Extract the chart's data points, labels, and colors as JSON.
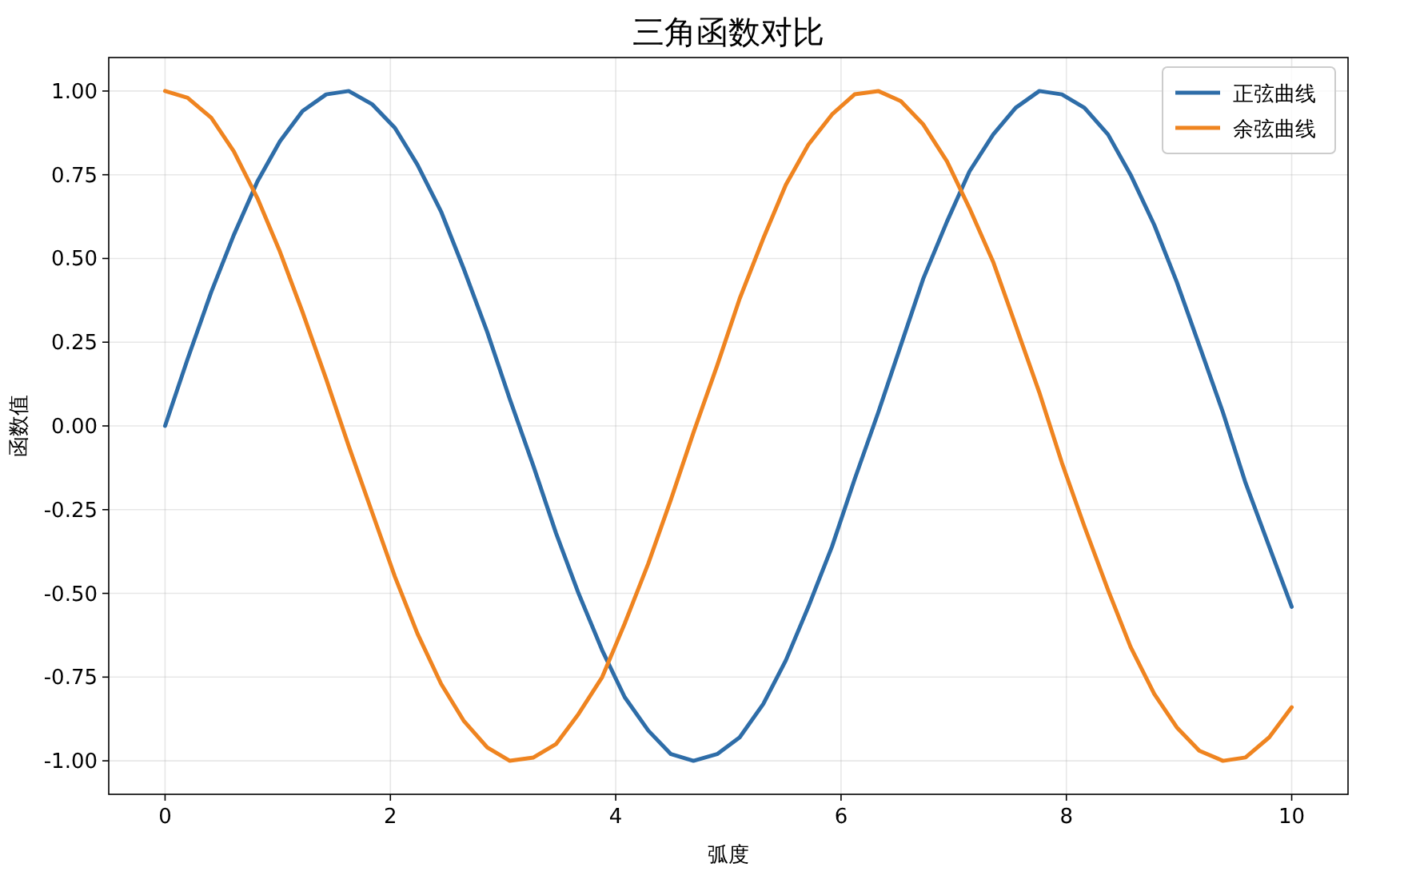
{
  "chart_data": {
    "type": "line",
    "title": "三角函数对比",
    "xlabel": "弧度",
    "ylabel": "函数值",
    "x": [
      0,
      0.2,
      0.41,
      0.61,
      0.82,
      1.02,
      1.22,
      1.43,
      1.63,
      1.84,
      2.04,
      2.24,
      2.45,
      2.65,
      2.86,
      3.06,
      3.27,
      3.47,
      3.67,
      3.88,
      4.08,
      4.29,
      4.49,
      4.69,
      4.9,
      5.1,
      5.31,
      5.51,
      5.71,
      5.92,
      6.12,
      6.33,
      6.53,
      6.73,
      6.94,
      7.14,
      7.35,
      7.55,
      7.76,
      7.96,
      8.16,
      8.37,
      8.57,
      8.78,
      8.98,
      9.18,
      9.39,
      9.59,
      9.8,
      10
    ],
    "series": [
      {
        "name": "正弦曲线",
        "color": "#2e6da8",
        "values": [
          0,
          0.2,
          0.4,
          0.57,
          0.73,
          0.85,
          0.94,
          0.99,
          1.0,
          0.96,
          0.89,
          0.78,
          0.64,
          0.47,
          0.28,
          0.08,
          -0.12,
          -0.32,
          -0.5,
          -0.67,
          -0.81,
          -0.91,
          -0.98,
          -1.0,
          -0.98,
          -0.93,
          -0.83,
          -0.7,
          -0.54,
          -0.36,
          -0.16,
          0.04,
          0.24,
          0.44,
          0.61,
          0.76,
          0.87,
          0.95,
          1.0,
          0.99,
          0.95,
          0.87,
          0.75,
          0.6,
          0.43,
          0.24,
          0.04,
          -0.17,
          -0.36,
          -0.54
        ]
      },
      {
        "name": "余弦曲线",
        "color": "#ef8420",
        "values": [
          1.0,
          0.98,
          0.92,
          0.82,
          0.68,
          0.52,
          0.34,
          0.14,
          -0.06,
          -0.26,
          -0.45,
          -0.62,
          -0.77,
          -0.88,
          -0.96,
          -1.0,
          -0.99,
          -0.95,
          -0.86,
          -0.75,
          -0.59,
          -0.41,
          -0.22,
          -0.02,
          0.18,
          0.38,
          0.56,
          0.72,
          0.84,
          0.93,
          0.99,
          1.0,
          0.97,
          0.9,
          0.79,
          0.65,
          0.49,
          0.3,
          0.1,
          -0.11,
          -0.3,
          -0.49,
          -0.66,
          -0.8,
          -0.9,
          -0.97,
          -1.0,
          -0.99,
          -0.93,
          -0.84
        ]
      }
    ],
    "xlim": [
      -0.5,
      10.5
    ],
    "xticks": [
      0,
      2,
      4,
      6,
      8,
      10
    ],
    "ylim": [
      -1.1,
      1.1
    ],
    "yticks": [
      {
        "value": -1,
        "label": "-1.00"
      },
      {
        "value": -0.75,
        "label": "-0.75"
      },
      {
        "value": -0.5,
        "label": "-0.50"
      },
      {
        "value": -0.25,
        "label": "-0.25"
      },
      {
        "value": 0,
        "label": "0.00"
      },
      {
        "value": 0.25,
        "label": "0.25"
      },
      {
        "value": 0.5,
        "label": "0.50"
      },
      {
        "value": 0.75,
        "label": "0.75"
      },
      {
        "value": 1,
        "label": "1.00"
      }
    ],
    "grid": true,
    "legend": "top right",
    "line_style": "solid"
  }
}
